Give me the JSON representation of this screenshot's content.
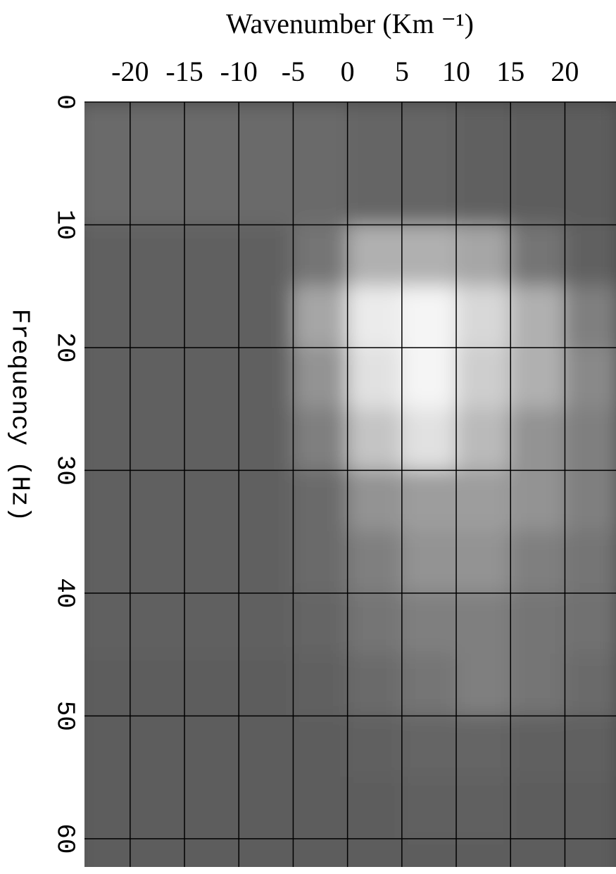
{
  "chart_data": {
    "type": "heatmap",
    "xlabel": "Wavenumber (Km ⁻¹)",
    "ylabel": "Frequency (Hz)",
    "x": [
      -22.5,
      -17.5,
      -12.5,
      -7.5,
      -2.5,
      2.5,
      7.5,
      12.5,
      17.5,
      22.5
    ],
    "y": [
      2.5,
      7.5,
      12.5,
      17.5,
      22.5,
      27.5,
      32.5,
      37.5,
      42.5,
      47.5,
      52.5,
      57.5,
      62.5
    ],
    "z": [
      [
        0.25,
        0.25,
        0.25,
        0.25,
        0.25,
        0.22,
        0.22,
        0.2,
        0.18,
        0.18
      ],
      [
        0.25,
        0.25,
        0.25,
        0.25,
        0.25,
        0.22,
        0.22,
        0.2,
        0.18,
        0.18
      ],
      [
        0.2,
        0.2,
        0.2,
        0.2,
        0.3,
        0.6,
        0.6,
        0.55,
        0.3,
        0.2
      ],
      [
        0.2,
        0.2,
        0.2,
        0.2,
        0.55,
        0.9,
        0.95,
        0.8,
        0.6,
        0.35
      ],
      [
        0.2,
        0.2,
        0.2,
        0.2,
        0.45,
        0.85,
        0.95,
        0.75,
        0.6,
        0.4
      ],
      [
        0.2,
        0.2,
        0.2,
        0.2,
        0.35,
        0.7,
        0.85,
        0.65,
        0.45,
        0.35
      ],
      [
        0.2,
        0.2,
        0.2,
        0.2,
        0.25,
        0.45,
        0.5,
        0.5,
        0.45,
        0.35
      ],
      [
        0.2,
        0.2,
        0.2,
        0.2,
        0.25,
        0.35,
        0.45,
        0.45,
        0.35,
        0.3
      ],
      [
        0.2,
        0.2,
        0.2,
        0.2,
        0.22,
        0.3,
        0.35,
        0.35,
        0.3,
        0.28
      ],
      [
        0.18,
        0.18,
        0.18,
        0.18,
        0.2,
        0.25,
        0.3,
        0.35,
        0.3,
        0.25
      ],
      [
        0.18,
        0.18,
        0.18,
        0.18,
        0.18,
        0.2,
        0.22,
        0.22,
        0.2,
        0.2
      ],
      [
        0.18,
        0.18,
        0.18,
        0.18,
        0.18,
        0.18,
        0.2,
        0.2,
        0.18,
        0.18
      ],
      [
        0.18,
        0.18,
        0.18,
        0.18,
        0.18,
        0.18,
        0.18,
        0.18,
        0.18,
        0.18
      ]
    ],
    "colormap": [
      "#3a3a3a",
      "#ffffff"
    ],
    "xlim": [
      -24.2,
      24.7
    ],
    "xticks": [
      -20,
      -15,
      -10,
      -5,
      0,
      5,
      10,
      15,
      20
    ],
    "ylim": [
      0,
      62.3
    ],
    "yticks": [
      0,
      10,
      20,
      30,
      40,
      50,
      60
    ],
    "grid": true
  }
}
